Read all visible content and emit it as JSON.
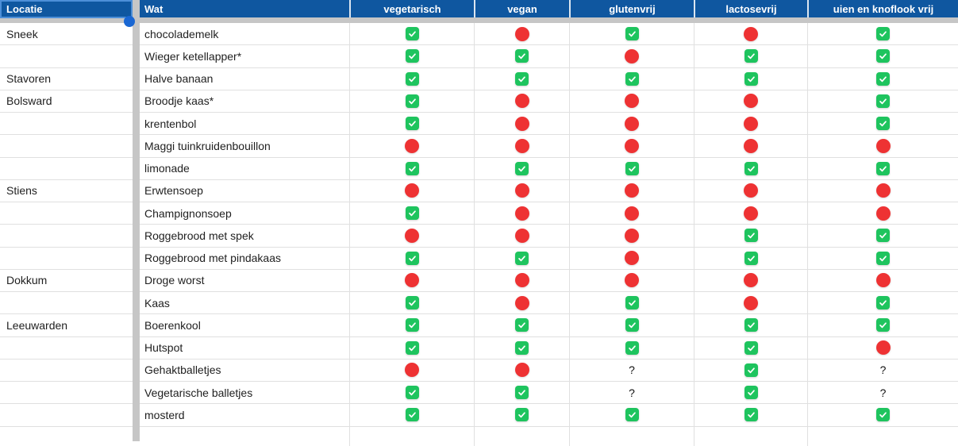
{
  "sheet": {
    "columns": [
      {
        "id": "locatie",
        "label": "Locatie",
        "align": "left"
      },
      {
        "id": "wat",
        "label": "Wat",
        "align": "left"
      },
      {
        "id": "vegetarisch",
        "label": "vegetarisch",
        "align": "center"
      },
      {
        "id": "vegan",
        "label": "vegan",
        "align": "center"
      },
      {
        "id": "glutenvrij",
        "label": "glutenvrij",
        "align": "center"
      },
      {
        "id": "lactosevrij",
        "label": "lactosevrij",
        "align": "center"
      },
      {
        "id": "uien_en_knoflook_vrij",
        "label": "uien en knoflook vrij",
        "align": "center"
      }
    ],
    "legend": {
      "yes": "green-check-icon",
      "no": "red-circle-icon",
      "unknown_glyph": "?"
    },
    "selection": {
      "selected_cell": "Locatie"
    },
    "rows": [
      {
        "locatie": "Sneek",
        "wat": "chocolademelk",
        "values": [
          "yes",
          "no",
          "yes",
          "no",
          "yes"
        ]
      },
      {
        "locatie": "",
        "wat": "Wieger ketellapper*",
        "values": [
          "yes",
          "yes",
          "no",
          "yes",
          "yes"
        ]
      },
      {
        "locatie": "Stavoren",
        "wat": "Halve banaan",
        "values": [
          "yes",
          "yes",
          "yes",
          "yes",
          "yes"
        ]
      },
      {
        "locatie": "Bolsward",
        "wat": "Broodje kaas*",
        "values": [
          "yes",
          "no",
          "no",
          "no",
          "yes"
        ]
      },
      {
        "locatie": "",
        "wat": "krentenbol",
        "values": [
          "yes",
          "no",
          "no",
          "no",
          "yes"
        ]
      },
      {
        "locatie": "",
        "wat": "Maggi tuinkruidenbouillon",
        "values": [
          "no",
          "no",
          "no",
          "no",
          "no"
        ]
      },
      {
        "locatie": "",
        "wat": "limonade",
        "values": [
          "yes",
          "yes",
          "yes",
          "yes",
          "yes"
        ]
      },
      {
        "locatie": "Stiens",
        "wat": "Erwtensoep",
        "values": [
          "no",
          "no",
          "no",
          "no",
          "no"
        ]
      },
      {
        "locatie": "",
        "wat": "Champignonsoep",
        "values": [
          "yes",
          "no",
          "no",
          "no",
          "no"
        ]
      },
      {
        "locatie": "",
        "wat": "Roggebrood met spek",
        "values": [
          "no",
          "no",
          "no",
          "yes",
          "yes"
        ]
      },
      {
        "locatie": "",
        "wat": "Roggebrood met pindakaas",
        "values": [
          "yes",
          "yes",
          "no",
          "yes",
          "yes"
        ]
      },
      {
        "locatie": "Dokkum",
        "wat": "Droge worst",
        "values": [
          "no",
          "no",
          "no",
          "no",
          "no"
        ]
      },
      {
        "locatie": "",
        "wat": "Kaas",
        "values": [
          "yes",
          "no",
          "yes",
          "no",
          "yes"
        ]
      },
      {
        "locatie": "Leeuwarden",
        "wat": "Boerenkool",
        "values": [
          "yes",
          "yes",
          "yes",
          "yes",
          "yes"
        ]
      },
      {
        "locatie": "",
        "wat": "Hutspot",
        "values": [
          "yes",
          "yes",
          "yes",
          "yes",
          "no"
        ]
      },
      {
        "locatie": "",
        "wat": "Gehaktballetjes",
        "values": [
          "no",
          "no",
          "unknown",
          "yes",
          "unknown"
        ]
      },
      {
        "locatie": "",
        "wat": "Vegetarische balletjes",
        "values": [
          "yes",
          "yes",
          "unknown",
          "yes",
          "unknown"
        ]
      },
      {
        "locatie": "",
        "wat": "mosterd",
        "values": [
          "yes",
          "yes",
          "yes",
          "yes",
          "yes"
        ]
      }
    ],
    "colors": {
      "header_bg": "#0F57A0",
      "header_text": "#FFFFFF",
      "check_green": "#1EC45E",
      "circle_red": "#EE3233",
      "grid_line": "#E0E0E0",
      "divider_gray": "#C6C6C6",
      "selection_border": "#4D8FD8",
      "handle_blue": "#1A67D3",
      "cell_text": "#1F1F1F",
      "sheet_bg": "#FFFFFF"
    }
  }
}
